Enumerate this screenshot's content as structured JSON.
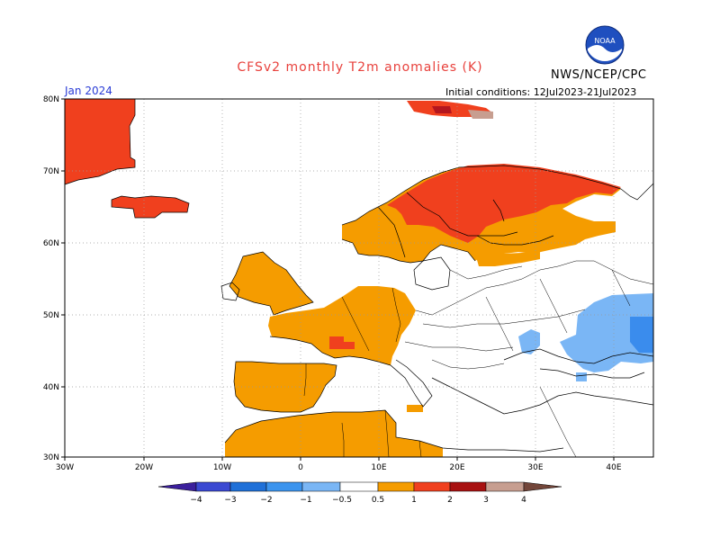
{
  "header": {
    "title": "CFSv2 monthly T2m anomalies (K)",
    "source": "NWS/NCEP/CPC",
    "logo_text": "NOAA",
    "month": "Jan 2024",
    "initial_conditions": "Initial conditions: 12Jul2023-21Jul2023"
  },
  "map": {
    "lat_labels": [
      "80N",
      "70N",
      "60N",
      "50N",
      "40N",
      "30N"
    ],
    "lon_labels": [
      "30W",
      "20W",
      "10W",
      "0",
      "10E",
      "20E",
      "30E",
      "40E"
    ],
    "colors": {
      "land_outline": "#000000",
      "ocean": "#ffffff",
      "anom_pos_0_5_1": "#f59c00",
      "anom_pos_1_2": "#f0401e",
      "anom_pos_2_3": "#b4161e",
      "anom_pos_3_4": "#c79e90",
      "anom_neg_0_5_1": "#7ab6f5",
      "anom_neg_1_2": "#3a8ced"
    }
  },
  "legend": {
    "labels": [
      "−4",
      "−3",
      "−2",
      "−1",
      "−0.5",
      "0.5",
      "1",
      "2",
      "3",
      "4"
    ],
    "colors": [
      "#3b1f9c",
      "#3b49d2",
      "#1f70d8",
      "#3c94ee",
      "#7ab6f5",
      "#ffffff",
      "#f59c00",
      "#f0401e",
      "#b4161e",
      "#a81111",
      "#c79e90",
      "#73463a"
    ]
  }
}
